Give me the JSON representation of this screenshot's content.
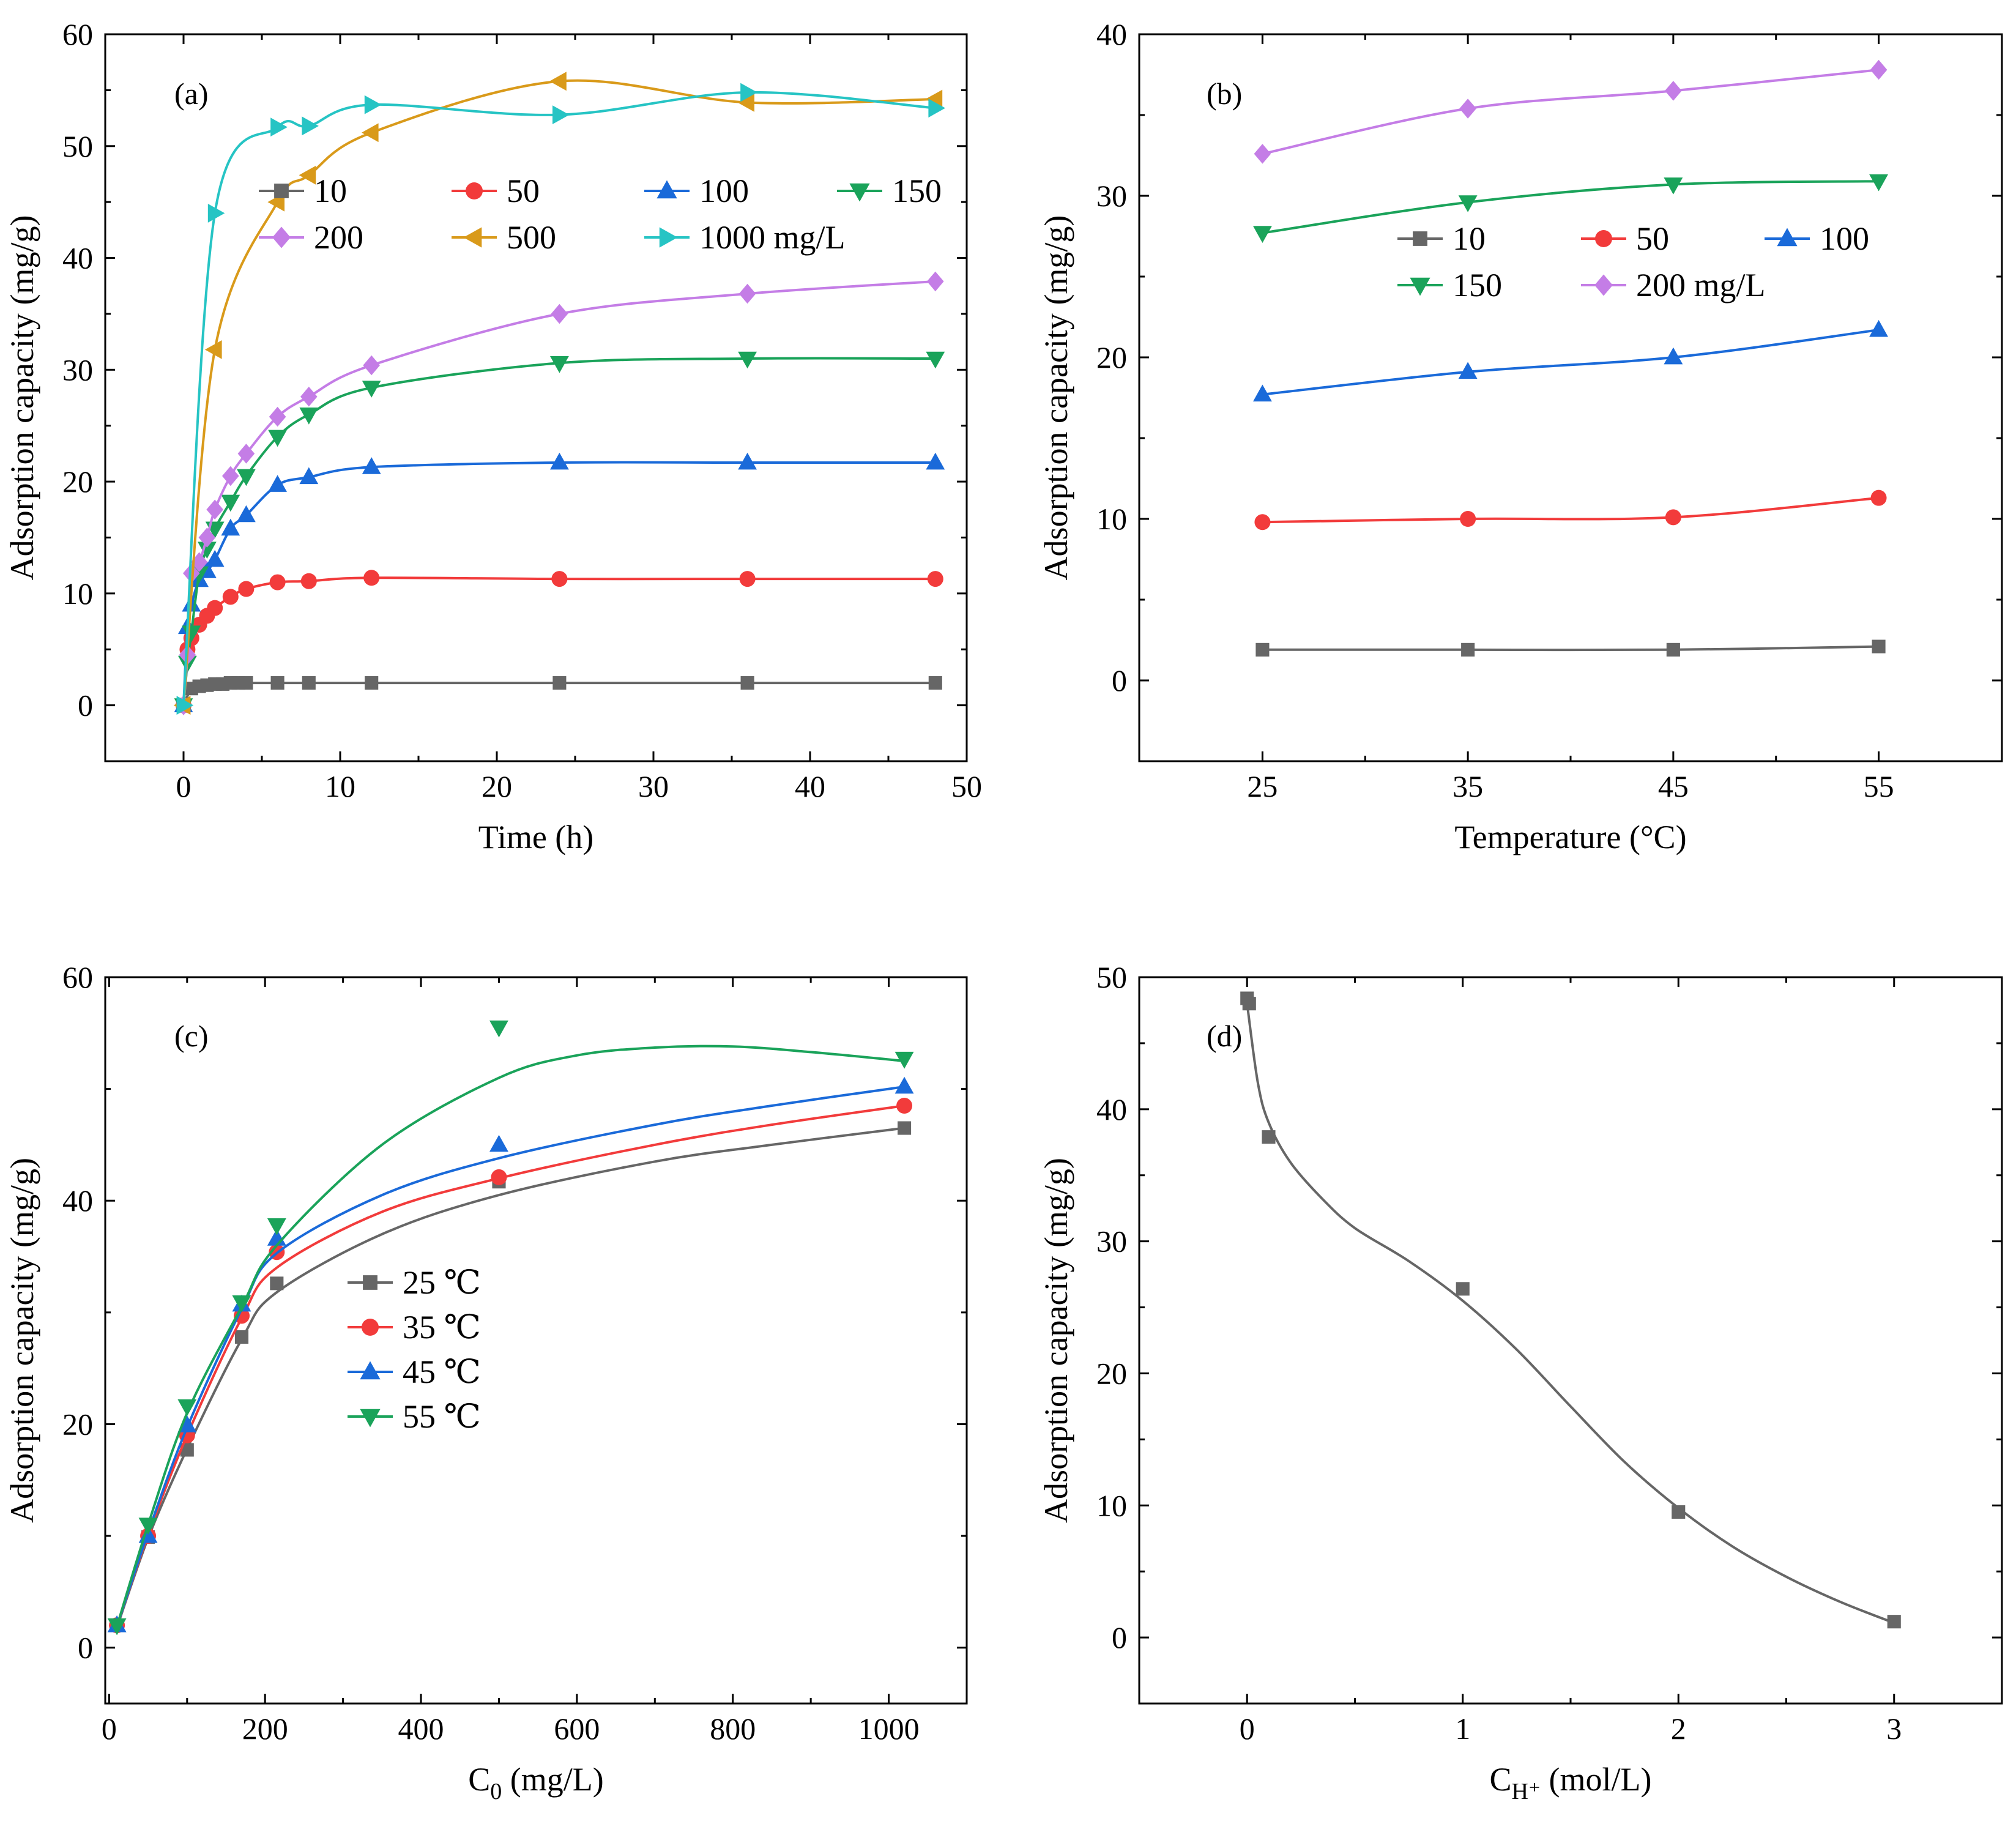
{
  "chart_data": [
    {
      "id": "a",
      "type": "line",
      "panel_label": "(a)",
      "xlabel": "Time (h)",
      "ylabel": "Adsorption capacity (mg/g)",
      "xlim": [
        -5,
        50
      ],
      "ylim": [
        -5,
        60
      ],
      "xticks": [
        0,
        10,
        20,
        30,
        40,
        50
      ],
      "yticks": [
        0,
        10,
        20,
        30,
        40,
        50,
        60
      ],
      "legend_suffix": "mg/L",
      "series": [
        {
          "name": "10",
          "color": "#666666",
          "marker": "square",
          "x": [
            0,
            0.5,
            1,
            1.5,
            2,
            2.5,
            3,
            3.5,
            4,
            6,
            8,
            12,
            24,
            36,
            48
          ],
          "y": [
            0,
            1.5,
            1.7,
            1.8,
            1.9,
            1.9,
            2.0,
            2.0,
            2.0,
            2.0,
            2.0,
            2.0,
            2.0,
            2.0,
            2.0
          ]
        },
        {
          "name": "50",
          "color": "#f23b3b",
          "marker": "circle",
          "x": [
            0,
            0.25,
            0.5,
            1,
            1.5,
            2,
            3,
            4,
            6,
            8,
            12,
            24,
            36,
            48
          ],
          "y": [
            0,
            5.0,
            6.0,
            7.2,
            8.0,
            8.7,
            9.7,
            10.4,
            11.0,
            11.1,
            11.4,
            11.3,
            11.3,
            11.3
          ]
        },
        {
          "name": "100",
          "color": "#1a6ad9",
          "marker": "triangle-up",
          "x": [
            0,
            0.25,
            0.5,
            1,
            1.5,
            2,
            3,
            4,
            6,
            8,
            12,
            24,
            36,
            48
          ],
          "y": [
            0,
            7.0,
            9.0,
            11.2,
            12.0,
            13.0,
            15.8,
            17.0,
            19.7,
            20.4,
            21.3,
            21.7,
            21.7,
            21.7
          ]
        },
        {
          "name": "150",
          "color": "#1aa35a",
          "marker": "triangle-down",
          "x": [
            0,
            0.25,
            0.5,
            1,
            1.5,
            2,
            3,
            4,
            6,
            8,
            12,
            24,
            36,
            48
          ],
          "y": [
            0,
            3.8,
            6.5,
            11.8,
            14.0,
            15.8,
            18.2,
            20.5,
            24.0,
            26.0,
            28.4,
            30.6,
            31.0,
            31.0
          ]
        },
        {
          "name": "200",
          "color": "#c47de6",
          "marker": "diamond",
          "x": [
            0,
            0.25,
            0.5,
            1,
            1.5,
            2,
            3,
            4,
            6,
            8,
            12,
            24,
            36,
            48
          ],
          "y": [
            0,
            4.5,
            11.8,
            12.8,
            15.0,
            17.5,
            20.5,
            22.5,
            25.8,
            27.6,
            30.4,
            35.0,
            36.8,
            37.9
          ]
        },
        {
          "name": "500",
          "color": "#d99a1a",
          "marker": "triangle-left",
          "x": [
            0,
            2,
            6,
            8,
            12,
            24,
            36,
            48
          ],
          "y": [
            0,
            31.8,
            45.0,
            47.4,
            51.2,
            55.8,
            53.9,
            54.2
          ]
        },
        {
          "name": "1000",
          "color": "#26c4c4",
          "marker": "triangle-right",
          "x": [
            0,
            2,
            6,
            8,
            12,
            24,
            36,
            48
          ],
          "y": [
            0,
            44.0,
            51.7,
            51.8,
            53.7,
            52.8,
            54.8,
            53.4
          ]
        }
      ]
    },
    {
      "id": "b",
      "type": "line",
      "panel_label": "(b)",
      "xlabel": "Temperature (°C)",
      "ylabel": "Adsorption capacity (mg/g)",
      "xlim": [
        19,
        61
      ],
      "ylim": [
        -5,
        40
      ],
      "xticks": [
        25,
        35,
        45,
        55
      ],
      "yticks": [
        0,
        10,
        20,
        30,
        40
      ],
      "legend_suffix": "mg/L",
      "series": [
        {
          "name": "10",
          "color": "#666666",
          "marker": "square",
          "x": [
            25,
            35,
            45,
            55
          ],
          "y": [
            1.9,
            1.9,
            1.9,
            2.1
          ]
        },
        {
          "name": "50",
          "color": "#f23b3b",
          "marker": "circle",
          "x": [
            25,
            35,
            45,
            55
          ],
          "y": [
            9.8,
            10.0,
            10.1,
            11.3
          ]
        },
        {
          "name": "100",
          "color": "#1a6ad9",
          "marker": "triangle-up",
          "x": [
            25,
            35,
            45,
            55
          ],
          "y": [
            17.7,
            19.1,
            20.0,
            21.7
          ]
        },
        {
          "name": "150",
          "color": "#1aa35a",
          "marker": "triangle-down",
          "x": [
            25,
            35,
            45,
            55
          ],
          "y": [
            27.7,
            29.6,
            30.7,
            30.9
          ]
        },
        {
          "name": "200",
          "color": "#c47de6",
          "marker": "diamond",
          "x": [
            25,
            35,
            45,
            55
          ],
          "y": [
            32.6,
            35.4,
            36.5,
            37.8
          ]
        }
      ]
    },
    {
      "id": "c",
      "type": "scatter",
      "panel_label": "(c)",
      "xlabel": "C",
      "xlabel_sub": "0",
      "xlabel_unit": " (mg/L)",
      "ylabel": "Adsorption capacity (mg/g)",
      "xlim": [
        -5,
        1100
      ],
      "ylim": [
        -5,
        60
      ],
      "xticks": [
        0,
        200,
        400,
        600,
        800,
        1000
      ],
      "yticks": [
        0,
        20,
        40,
        60
      ],
      "series": [
        {
          "name": "25 ℃",
          "color": "#666666",
          "marker": "square",
          "x": [
            10,
            50,
            100,
            170,
            215,
            500,
            1020
          ],
          "y": [
            2.0,
            9.9,
            17.7,
            27.8,
            32.6,
            41.7,
            46.5
          ],
          "fit": {
            "x": [
              10,
              50,
              100,
              170,
              215,
              350,
              500,
              700,
              850,
              1020
            ],
            "y": [
              1.8,
              9.8,
              17.8,
              27.6,
              31.8,
              37.0,
              40.5,
              43.5,
              45.0,
              46.5
            ]
          }
        },
        {
          "name": "35 ℃",
          "color": "#f23b3b",
          "marker": "circle",
          "x": [
            10,
            50,
            100,
            170,
            215,
            500,
            1020
          ],
          "y": [
            2.0,
            10.0,
            19.0,
            29.7,
            35.4,
            42.1,
            48.5
          ],
          "fit": {
            "x": [
              10,
              50,
              100,
              170,
              215,
              350,
              500,
              700,
              850,
              1020
            ],
            "y": [
              1.9,
              10.1,
              19.0,
              29.5,
              34.0,
              39.0,
              42.0,
              45.0,
              46.8,
              48.5
            ]
          }
        },
        {
          "name": "45 ℃",
          "color": "#1a6ad9",
          "marker": "triangle-up",
          "x": [
            10,
            50,
            100,
            170,
            215,
            500,
            1020
          ],
          "y": [
            2.0,
            10.0,
            19.9,
            30.7,
            36.6,
            45.0,
            50.2
          ],
          "fit": {
            "x": [
              10,
              50,
              100,
              170,
              215,
              350,
              500,
              700,
              850,
              1020
            ],
            "y": [
              1.9,
              10.3,
              19.7,
              30.3,
              35.3,
              40.5,
              43.8,
              46.8,
              48.5,
              50.2
            ]
          }
        },
        {
          "name": "55 ℃",
          "color": "#1aa35a",
          "marker": "triangle-down",
          "x": [
            10,
            50,
            100,
            170,
            215,
            500,
            1020
          ],
          "y": [
            2.0,
            11.0,
            21.6,
            30.9,
            37.8,
            55.5,
            52.7
          ],
          "fit": {
            "x": [
              10,
              50,
              100,
              170,
              215,
              350,
              500,
              600,
              700,
              800,
              900,
              1020
            ],
            "y": [
              1.9,
              11.0,
              21.0,
              30.5,
              36.0,
              45.0,
              51.0,
              53.0,
              53.7,
              53.8,
              53.3,
              52.5
            ]
          }
        }
      ]
    },
    {
      "id": "d",
      "type": "scatter",
      "panel_label": "(d)",
      "xlabel": "C",
      "xlabel_sub": "H⁺",
      "xlabel_unit": " (mol/L)",
      "ylabel": "Adsorption capacity (mg/g)",
      "xlim": [
        -0.5,
        3.5
      ],
      "ylim": [
        -5,
        50
      ],
      "xticks": [
        0,
        1,
        2,
        3
      ],
      "yticks": [
        0,
        10,
        20,
        30,
        40,
        50
      ],
      "series": [
        {
          "name": "",
          "color": "#666666",
          "marker": "square",
          "x": [
            0,
            0.01,
            0.1,
            1,
            2,
            3
          ],
          "y": [
            48.4,
            48.0,
            37.9,
            26.4,
            9.5,
            1.2
          ],
          "fit": {
            "x": [
              0,
              0.05,
              0.1,
              0.2,
              0.35,
              0.5,
              0.75,
              1.0,
              1.25,
              1.5,
              1.75,
              2.0,
              2.25,
              2.5,
              2.75,
              3.0
            ],
            "y": [
              48.0,
              42.0,
              39.0,
              36.0,
              33.2,
              31.0,
              28.5,
              25.5,
              21.8,
              17.5,
              13.3,
              9.8,
              6.9,
              4.6,
              2.7,
              1.1
            ]
          }
        }
      ]
    }
  ]
}
